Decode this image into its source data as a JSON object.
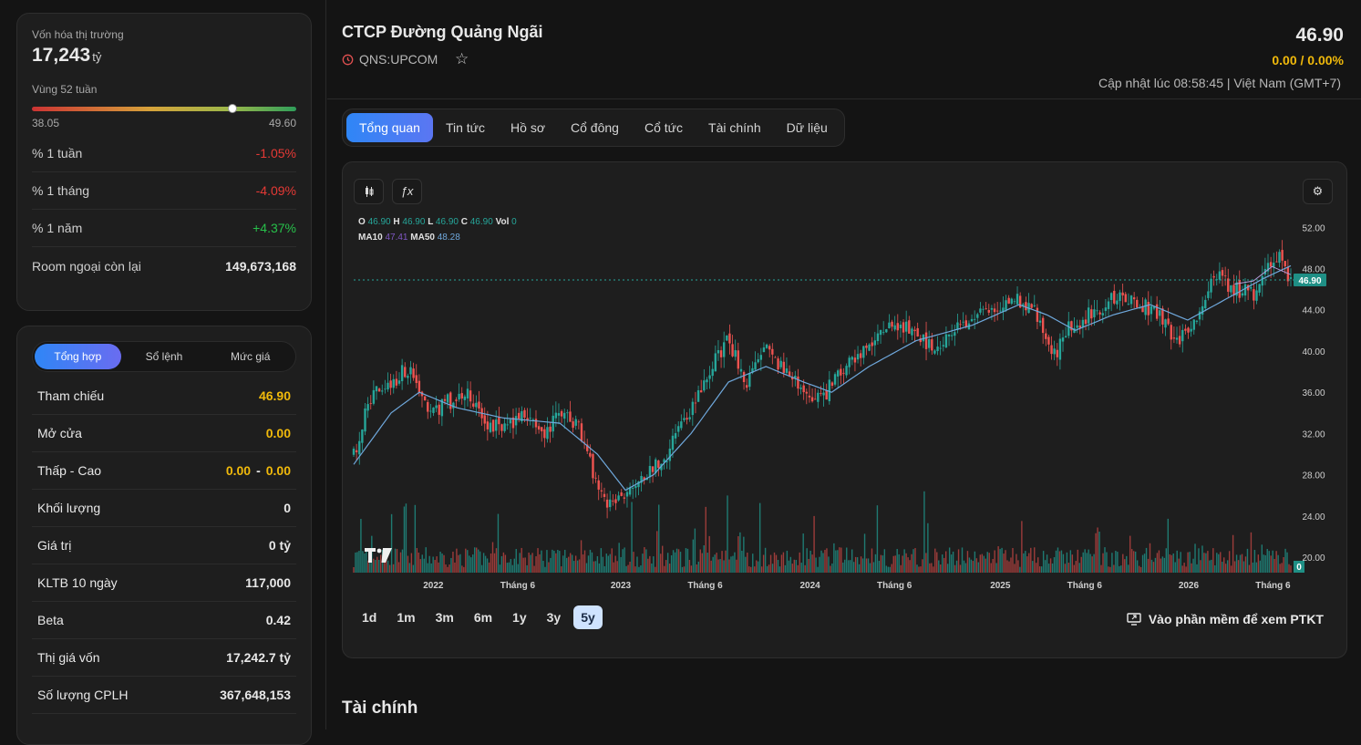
{
  "overview": {
    "market_cap_label": "Vốn hóa thị trường",
    "market_cap_value": "17,243",
    "market_cap_unit": "tỷ",
    "range_label": "Vùng 52 tuần",
    "range_low": "38.05",
    "range_high": "49.60",
    "range_position": 0.76,
    "stats": [
      {
        "label": "% 1 tuần",
        "value": "-1.05%",
        "tone": "neg"
      },
      {
        "label": "% 1 tháng",
        "value": "-4.09%",
        "tone": "neg"
      },
      {
        "label": "% 1 năm",
        "value": "+4.37%",
        "tone": "pos"
      },
      {
        "label": "Room ngoại còn lại",
        "value": "149,673,168",
        "tone": "plain"
      }
    ]
  },
  "summary": {
    "tabs": [
      "Tổng hợp",
      "Sổ lệnh",
      "Mức giá"
    ],
    "active_tab": 0,
    "rows": [
      {
        "label": "Tham chiếu",
        "value": "46.90"
      },
      {
        "label": "Mở cửa",
        "value": "0.00"
      },
      {
        "label": "Thấp - Cao",
        "low": "0.00",
        "high": "0.00",
        "sep": "-"
      },
      {
        "label": "Khối lượng",
        "value": "0"
      },
      {
        "label": "Giá trị",
        "value": "0 tỷ"
      },
      {
        "label": "KLTB 10 ngày",
        "value": "117,000"
      },
      {
        "label": "Beta",
        "value": "0.42"
      },
      {
        "label": "Thị giá vốn",
        "value": "17,242.7 tỷ"
      },
      {
        "label": "Số lượng CPLH",
        "value": "367,648,153"
      }
    ]
  },
  "header": {
    "company": "CTCP Đường Quảng Ngãi",
    "ticker": "QNS:UPCOM",
    "price": "46.90",
    "change": "0.00 / 0.00%",
    "updated": "Cập nhật lúc 08:58:45 | Việt Nam (GMT+7)"
  },
  "tabs": [
    "Tổng quan",
    "Tin tức",
    "Hồ sơ",
    "Cổ đông",
    "Cổ tức",
    "Tài chính",
    "Dữ liệu"
  ],
  "active_tab": 0,
  "chart_legend": {
    "o_label": "O",
    "o": "46.90",
    "h_label": "H",
    "h": "46.90",
    "l_label": "L",
    "l": "46.90",
    "c_label": "C",
    "c": "46.90",
    "vol_label": "Vol",
    "vol": "0",
    "ma10_label": "MA10",
    "ma10": "47.41",
    "ma50_label": "MA50",
    "ma50": "48.28"
  },
  "chart_data": {
    "type": "line",
    "series_price_type": "candlestick",
    "yticks": [
      "52.00",
      "48.00",
      "44.00",
      "40.00",
      "36.00",
      "32.00",
      "28.00",
      "24.00",
      "20.00"
    ],
    "ylim": [
      18.5,
      53
    ],
    "xticks": [
      "2022",
      "Tháng 6",
      "2023",
      "Tháng 6",
      "2024",
      "Tháng 6",
      "2025",
      "Tháng 6",
      "2026",
      "Tháng 6"
    ],
    "last_price_label": "46.90",
    "volume_label": "0",
    "close_path": [
      [
        0.0,
        30
      ],
      [
        0.02,
        36
      ],
      [
        0.04,
        37
      ],
      [
        0.06,
        38.5
      ],
      [
        0.08,
        34
      ],
      [
        0.1,
        35
      ],
      [
        0.12,
        36
      ],
      [
        0.14,
        33
      ],
      [
        0.16,
        32.5
      ],
      [
        0.18,
        34
      ],
      [
        0.2,
        31.5
      ],
      [
        0.22,
        34
      ],
      [
        0.24,
        33
      ],
      [
        0.26,
        27
      ],
      [
        0.275,
        25
      ],
      [
        0.29,
        26.5
      ],
      [
        0.305,
        28
      ],
      [
        0.33,
        29
      ],
      [
        0.35,
        33
      ],
      [
        0.37,
        36
      ],
      [
        0.385,
        39
      ],
      [
        0.4,
        41
      ],
      [
        0.42,
        37
      ],
      [
        0.44,
        40
      ],
      [
        0.46,
        38
      ],
      [
        0.48,
        36
      ],
      [
        0.5,
        35.5
      ],
      [
        0.52,
        38
      ],
      [
        0.54,
        40
      ],
      [
        0.56,
        41
      ],
      [
        0.575,
        43
      ],
      [
        0.6,
        41.5
      ],
      [
        0.62,
        40.5
      ],
      [
        0.65,
        42.5
      ],
      [
        0.68,
        44
      ],
      [
        0.71,
        45
      ],
      [
        0.73,
        43.5
      ],
      [
        0.745,
        39
      ],
      [
        0.76,
        42
      ],
      [
        0.79,
        44
      ],
      [
        0.82,
        45.5
      ],
      [
        0.84,
        44.5
      ],
      [
        0.86,
        43.5
      ],
      [
        0.875,
        41
      ],
      [
        0.89,
        42
      ],
      [
        0.905,
        44
      ],
      [
        0.92,
        47.5
      ],
      [
        0.94,
        46
      ],
      [
        0.96,
        45.5
      ],
      [
        0.975,
        48.5
      ],
      [
        0.99,
        49
      ],
      [
        1.0,
        46.9
      ]
    ],
    "ma50_path": [
      [
        0.0,
        29
      ],
      [
        0.04,
        34
      ],
      [
        0.07,
        36
      ],
      [
        0.11,
        34.5
      ],
      [
        0.16,
        33.5
      ],
      [
        0.22,
        33
      ],
      [
        0.26,
        30
      ],
      [
        0.29,
        26.5
      ],
      [
        0.32,
        28
      ],
      [
        0.36,
        32
      ],
      [
        0.4,
        37
      ],
      [
        0.44,
        38.5
      ],
      [
        0.48,
        37
      ],
      [
        0.51,
        36
      ],
      [
        0.55,
        38.5
      ],
      [
        0.6,
        41
      ],
      [
        0.66,
        42.5
      ],
      [
        0.71,
        44.5
      ],
      [
        0.74,
        43.5
      ],
      [
        0.77,
        42
      ],
      [
        0.81,
        43.5
      ],
      [
        0.85,
        44.5
      ],
      [
        0.89,
        43
      ],
      [
        0.93,
        45
      ],
      [
        0.97,
        47
      ],
      [
        1.0,
        48.28
      ]
    ],
    "ma10_path": [
      [
        0.94,
        46.5
      ],
      [
        0.96,
        46.8
      ],
      [
        0.98,
        48.2
      ],
      [
        1.0,
        47.41
      ]
    ]
  },
  "ranges": [
    "1d",
    "1m",
    "3m",
    "6m",
    "1y",
    "3y",
    "5y"
  ],
  "active_range": 6,
  "ptkt_label": "Vào phần mềm để xem PTKT",
  "section_title": "Tài chính",
  "colors": {
    "up": "#26a69a",
    "down": "#ef5350",
    "ma50": "#6fa8dc",
    "accent": "#2f86f6",
    "yellow": "#f0b90b"
  }
}
